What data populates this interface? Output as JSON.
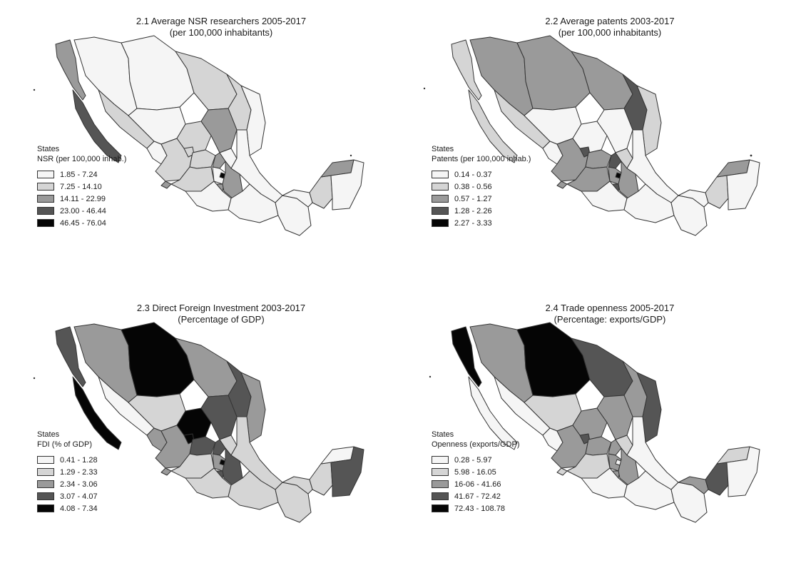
{
  "colors": {
    "class_1": "#f5f5f5",
    "class_2": "#d5d5d5",
    "class_3": "#9a9a9a",
    "class_4": "#555555",
    "class_5": "#050505",
    "border": "#333333"
  },
  "maps": [
    {
      "title_line1": "2.1 Average NSR researchers 2005-2017",
      "title_line2": "(per 100,000 inhabitants)",
      "legend_title": "States",
      "legend_subtitle": "NSR (per 100,000 inhab.)",
      "legend_items": [
        "1.85 - 7.24",
        "7.25 - 14.10",
        "14.11 - 22.99",
        "23.00 - 46.44",
        "46.45 - 76.04"
      ]
    },
    {
      "title_line1": "2.2 Average patents 2003-2017",
      "title_line2": "(per 100,000 inhabitants)",
      "legend_title": "States",
      "legend_subtitle": "Patents (per 100,000 inhab.)",
      "legend_items": [
        "0.14 - 0.37",
        "0.38 - 0.56",
        "0.57 - 1.27",
        "1.28 - 2.26",
        "2.27 - 3.33"
      ]
    },
    {
      "title_line1": "2.3 Direct Foreign Investment 2003-2017",
      "title_line2": "(Percentage of GDP)",
      "legend_title": "States",
      "legend_subtitle": "FDI (% of GDP)",
      "legend_items": [
        "0.41 - 1.28",
        "1.29 - 2.33",
        "2.34 - 3.06",
        "3.07 - 4.07",
        "4.08 - 7.34"
      ]
    },
    {
      "title_line1": "2.4 Trade openness 2005-2017",
      "title_line2": "(Percentage: exports/GDP)",
      "legend_title": "States",
      "legend_subtitle": "Openness (exports/GDP)",
      "legend_items": [
        "0.28 - 5.97",
        "5.98 - 16.05",
        "16-06 - 41.66",
        "41.67 - 72.42",
        "72.43 - 108.78"
      ]
    }
  ]
}
